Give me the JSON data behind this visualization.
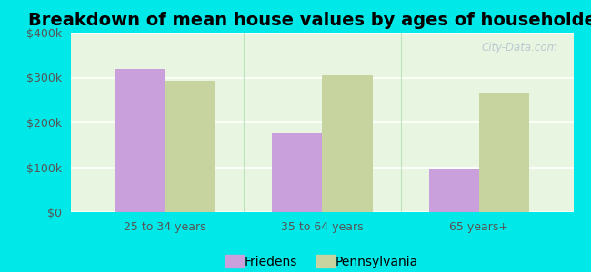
{
  "title": "Breakdown of mean house values by ages of householders",
  "categories": [
    "25 to 34 years",
    "35 to 64 years",
    "65 years+"
  ],
  "friedens_values": [
    320000,
    175000,
    97000
  ],
  "pennsylvania_values": [
    293000,
    305000,
    265000
  ],
  "friedens_color": "#c9a0dc",
  "pennsylvania_color": "#c8d4a0",
  "background_color": "#00e8e8",
  "plot_bg_top": "#e8f5e0",
  "plot_bg_bottom": "#f5fff5",
  "ylim": [
    0,
    400000
  ],
  "yticks": [
    0,
    100000,
    200000,
    300000,
    400000
  ],
  "ytick_labels": [
    "$0",
    "$100k",
    "$200k",
    "$300k",
    "$400k"
  ],
  "legend_labels": [
    "Friedens",
    "Pennsylvania"
  ],
  "bar_width": 0.32,
  "title_fontsize": 14,
  "tick_fontsize": 9,
  "legend_fontsize": 10,
  "watermark": "City-Data.com"
}
